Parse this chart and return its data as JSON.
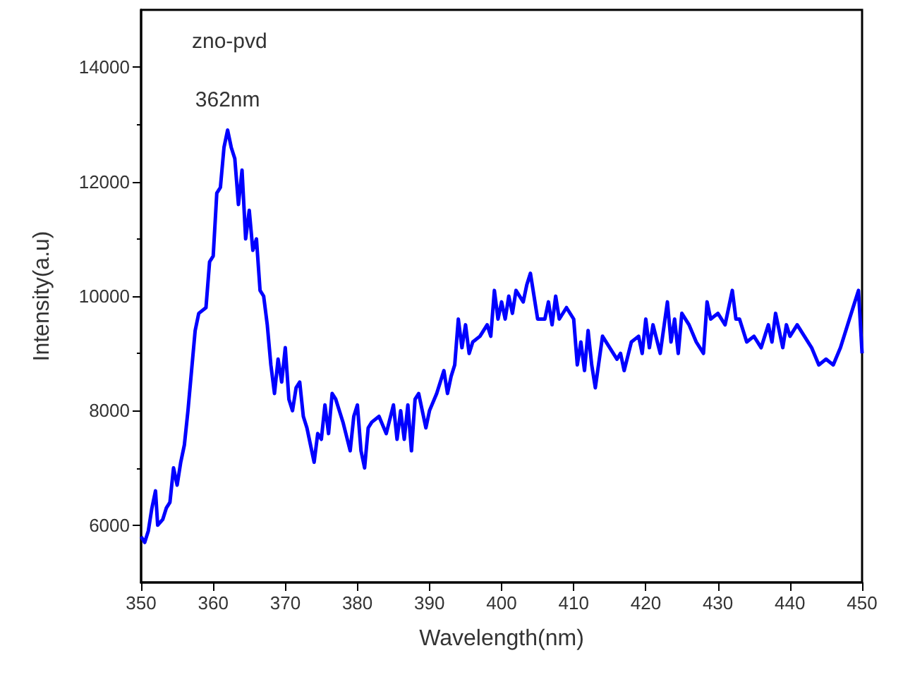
{
  "chart_data": {
    "type": "line",
    "xlabel": "Wavelength(nm)",
    "ylabel": "Intensity(a.u)",
    "annotations": [
      "zno-pvd",
      {
        "text": "362nm",
        "x": 362,
        "y": 12900
      }
    ],
    "xlim": [
      350,
      450
    ],
    "xticks": [
      350,
      360,
      370,
      380,
      390,
      400,
      410,
      420,
      430,
      440,
      450
    ],
    "ylim": [
      5000,
      15000
    ],
    "yticks": [
      6000,
      8000,
      10000,
      12000,
      14000
    ],
    "grid": false,
    "marker": "none",
    "line_style": "solid",
    "series": [
      {
        "color": "#0000ff",
        "x": [
          350,
          350.5,
          351,
          351.5,
          352,
          352.3,
          353,
          353.5,
          354,
          354.5,
          355,
          355.5,
          356,
          356.5,
          357,
          357.5,
          358,
          359,
          359.5,
          360,
          360.5,
          361,
          361.5,
          362,
          362.5,
          363,
          363.5,
          364,
          364.5,
          365,
          365.5,
          366,
          366.5,
          367,
          367.5,
          368,
          368.5,
          369,
          369.5,
          370,
          370.5,
          371,
          371.5,
          372,
          372.5,
          373,
          373.5,
          374,
          374.5,
          375,
          375.5,
          376,
          376.5,
          377,
          378,
          379,
          379.5,
          380,
          380.5,
          381,
          381.5,
          382,
          383,
          384,
          385,
          385.5,
          386,
          386.5,
          387,
          387.5,
          388,
          388.5,
          389,
          389.5,
          390,
          391,
          392,
          392.5,
          393,
          393.5,
          394,
          394.5,
          395,
          395.5,
          396,
          397,
          398,
          398.5,
          399,
          399.5,
          400,
          400.5,
          401,
          401.5,
          402,
          403,
          403.5,
          404,
          404.5,
          405,
          406,
          406.5,
          407,
          407.5,
          408,
          409,
          410,
          410.5,
          411,
          411.5,
          412,
          412.5,
          413,
          414,
          415,
          416,
          416.5,
          417,
          418,
          419,
          419.5,
          420,
          420.5,
          421,
          422,
          423,
          423.5,
          424,
          424.5,
          425,
          426,
          427,
          428,
          428.5,
          429,
          430,
          431,
          432,
          432.5,
          433,
          434,
          435,
          436,
          437,
          437.5,
          438,
          439,
          439.5,
          440,
          441,
          442,
          443,
          444,
          445,
          446,
          447,
          448,
          449,
          449.5,
          450
        ],
        "values": [
          5800,
          5700,
          5900,
          6300,
          6600,
          6000,
          6100,
          6300,
          6400,
          7000,
          6700,
          7100,
          7400,
          8000,
          8700,
          9400,
          9700,
          9800,
          10600,
          10700,
          11800,
          11900,
          12600,
          12900,
          12600,
          12400,
          11600,
          12200,
          11000,
          11500,
          10800,
          11000,
          10100,
          10000,
          9500,
          8800,
          8300,
          8900,
          8500,
          9100,
          8200,
          8000,
          8400,
          8500,
          7900,
          7700,
          7400,
          7100,
          7600,
          7500,
          8100,
          7600,
          8300,
          8200,
          7800,
          7300,
          7900,
          8100,
          7300,
          7000,
          7700,
          7800,
          7900,
          7600,
          8100,
          7500,
          8000,
          7500,
          8100,
          7300,
          8200,
          8300,
          8000,
          7700,
          8000,
          8300,
          8700,
          8300,
          8600,
          8800,
          9600,
          9100,
          9500,
          9000,
          9200,
          9300,
          9500,
          9300,
          10100,
          9600,
          9900,
          9600,
          10000,
          9700,
          10100,
          9900,
          10200,
          10400,
          10000,
          9600,
          9600,
          9900,
          9500,
          10000,
          9600,
          9800,
          9600,
          8800,
          9200,
          8700,
          9400,
          8800,
          8400,
          9300,
          9100,
          8900,
          9000,
          8700,
          9200,
          9300,
          9000,
          9600,
          9100,
          9500,
          9000,
          9900,
          9200,
          9600,
          9000,
          9700,
          9500,
          9200,
          9000,
          9900,
          9600,
          9700,
          9500,
          10100,
          9600,
          9600,
          9200,
          9300,
          9100,
          9500,
          9200,
          9700,
          9100,
          9500,
          9300,
          9500,
          9300,
          9100,
          8800,
          8900,
          8800,
          9100,
          9500,
          9900,
          10100,
          9000
        ]
      }
    ]
  }
}
